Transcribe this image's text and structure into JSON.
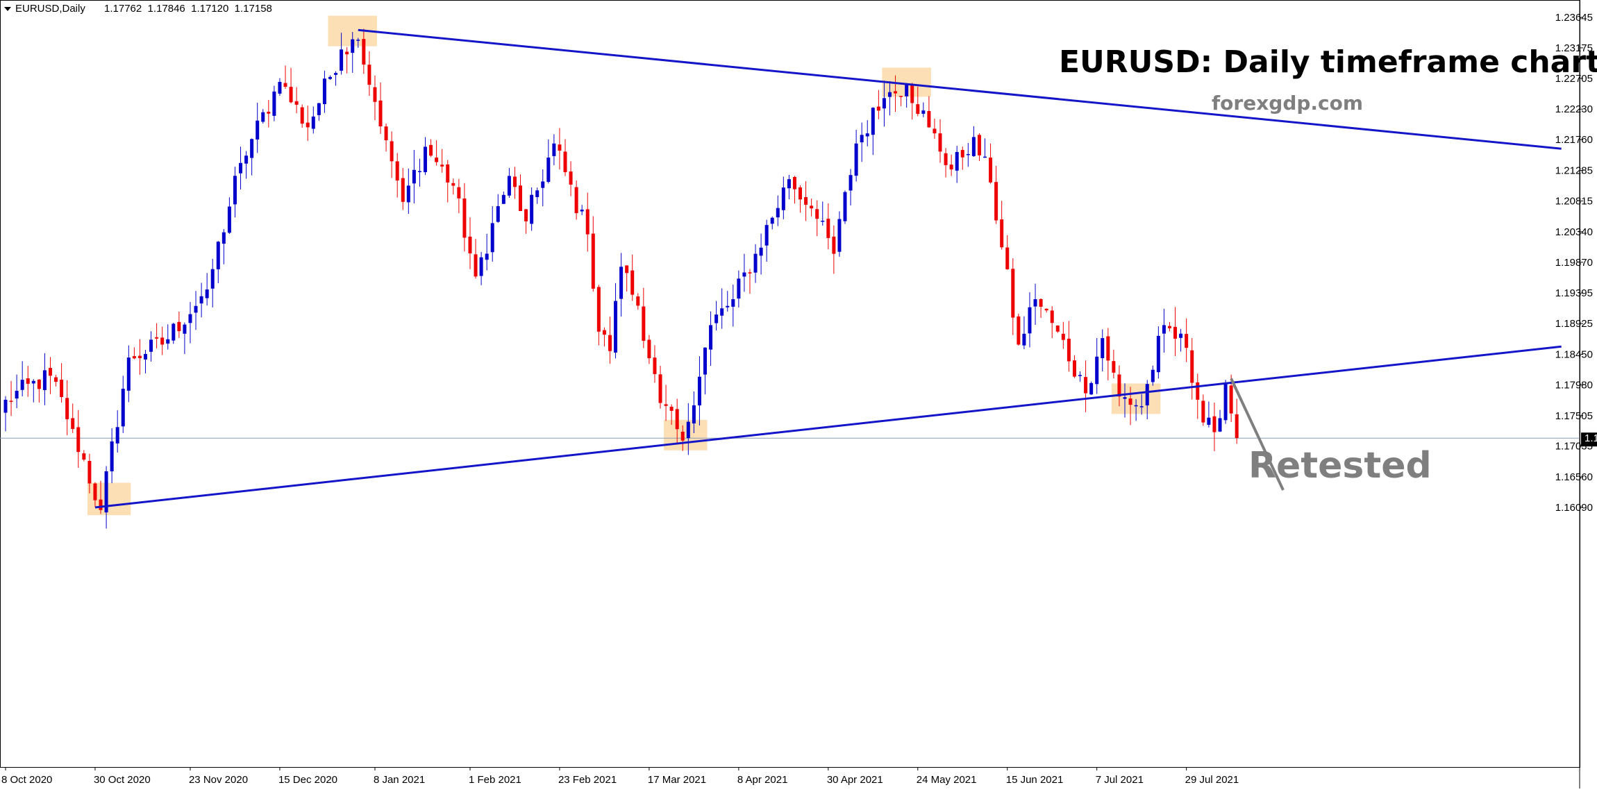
{
  "header": {
    "symbol_label": "EURUSD,Daily",
    "ohlc_text": "1.17762  1.17846  1.17120  1.17158",
    "menu_icon": "triangle-down-icon"
  },
  "annotations": {
    "title": "EURUSD: Daily timeframe chart",
    "site": "forexgdp.com",
    "callout": "Retested"
  },
  "current_price": "1.17158",
  "colors": {
    "bull": "#0000cc",
    "bear": "#ee0000",
    "trendline": "#1414c8",
    "highlight": "#fbd9a8",
    "price_line": "#8a9bb0",
    "callout": "#7f7f7f"
  },
  "chart_data": {
    "type": "candlestick",
    "title": "EURUSD: Daily timeframe chart",
    "xlabel": "",
    "ylabel": "",
    "ylim": [
      1.1585,
      1.2388
    ],
    "y_ticks": [
      "1.23645",
      "1.23175",
      "1.22705",
      "1.22230",
      "1.21760",
      "1.21285",
      "1.20815",
      "1.20340",
      "1.19870",
      "1.19395",
      "1.18925",
      "1.18450",
      "1.17980",
      "1.17505",
      "1.17035",
      "1.16560",
      "1.16090"
    ],
    "x_ticks": [
      {
        "label": "8 Oct 2020",
        "index": 0
      },
      {
        "label": "30 Oct 2020",
        "index": 16
      },
      {
        "label": "23 Nov 2020",
        "index": 33
      },
      {
        "label": "15 Dec 2020",
        "index": 49
      },
      {
        "label": "8 Jan 2021",
        "index": 66
      },
      {
        "label": "1 Feb 2021",
        "index": 83
      },
      {
        "label": "23 Feb 2021",
        "index": 99
      },
      {
        "label": "17 Mar 2021",
        "index": 115
      },
      {
        "label": "8 Apr 2021",
        "index": 131
      },
      {
        "label": "30 Apr 2021",
        "index": 147
      },
      {
        "label": "24 May 2021",
        "index": 163
      },
      {
        "label": "15 Jun 2021",
        "index": 179
      },
      {
        "label": "7 Jul 2021",
        "index": 195
      },
      {
        "label": "29 Jul 2021",
        "index": 211
      }
    ],
    "num_bars": 278,
    "key_points": [
      {
        "i": 0,
        "p": 1.1775
      },
      {
        "i": 8,
        "p": 1.1812
      },
      {
        "i": 12,
        "p": 1.173
      },
      {
        "i": 17,
        "p": 1.1605
      },
      {
        "i": 22,
        "p": 1.184
      },
      {
        "i": 28,
        "p": 1.186
      },
      {
        "i": 36,
        "p": 1.1945
      },
      {
        "i": 42,
        "p": 1.214
      },
      {
        "i": 49,
        "p": 1.2265
      },
      {
        "i": 54,
        "p": 1.2195
      },
      {
        "i": 60,
        "p": 1.2315
      },
      {
        "i": 63,
        "p": 1.233
      },
      {
        "i": 68,
        "p": 1.2175
      },
      {
        "i": 71,
        "p": 1.208
      },
      {
        "i": 75,
        "p": 1.2165
      },
      {
        "i": 80,
        "p": 1.2105
      },
      {
        "i": 84,
        "p": 1.1965
      },
      {
        "i": 90,
        "p": 1.212
      },
      {
        "i": 93,
        "p": 1.205
      },
      {
        "i": 98,
        "p": 1.217
      },
      {
        "i": 104,
        "p": 1.203
      },
      {
        "i": 106,
        "p": 1.188
      },
      {
        "i": 108,
        "p": 1.185
      },
      {
        "i": 110,
        "p": 1.198
      },
      {
        "i": 113,
        "p": 1.192
      },
      {
        "i": 117,
        "p": 1.177
      },
      {
        "i": 121,
        "p": 1.1712
      },
      {
        "i": 126,
        "p": 1.189
      },
      {
        "i": 130,
        "p": 1.193
      },
      {
        "i": 134,
        "p": 1.2
      },
      {
        "i": 140,
        "p": 1.2115
      },
      {
        "i": 144,
        "p": 1.207
      },
      {
        "i": 148,
        "p": 1.2
      },
      {
        "i": 152,
        "p": 1.217
      },
      {
        "i": 157,
        "p": 1.224
      },
      {
        "i": 161,
        "p": 1.2262
      },
      {
        "i": 165,
        "p": 1.2195
      },
      {
        "i": 169,
        "p": 1.213
      },
      {
        "i": 173,
        "p": 1.218
      },
      {
        "i": 176,
        "p": 1.211
      },
      {
        "i": 178,
        "p": 1.201
      },
      {
        "i": 181,
        "p": 1.186
      },
      {
        "i": 184,
        "p": 1.193
      },
      {
        "i": 188,
        "p": 1.188
      },
      {
        "i": 193,
        "p": 1.1785
      },
      {
        "i": 196,
        "p": 1.187
      },
      {
        "i": 199,
        "p": 1.178
      },
      {
        "i": 203,
        "p": 1.1765
      },
      {
        "i": 207,
        "p": 1.189
      },
      {
        "i": 211,
        "p": 1.1855
      },
      {
        "i": 214,
        "p": 1.174
      },
      {
        "i": 216,
        "p": 1.1725
      },
      {
        "i": 218,
        "p": 1.18
      },
      {
        "i": 220,
        "p": 1.1716
      }
    ],
    "last_bar_index": 220,
    "trendlines": [
      {
        "name": "descending resistance",
        "from": {
          "i": 63,
          "p": 1.2345
        },
        "to": {
          "i": 278,
          "p": 1.2162
        }
      },
      {
        "name": "ascending support",
        "from": {
          "i": 16,
          "p": 1.1609
        },
        "to": {
          "i": 278,
          "p": 1.1857
        }
      }
    ],
    "highlight_zones": [
      {
        "i0": 15,
        "i1": 22,
        "p0": 1.1597,
        "p1": 1.1647
      },
      {
        "i0": 58,
        "i1": 66,
        "p0": 1.232,
        "p1": 1.2367
      },
      {
        "i0": 118,
        "i1": 125,
        "p0": 1.1697,
        "p1": 1.1744
      },
      {
        "i0": 157,
        "i1": 165,
        "p0": 1.2242,
        "p1": 1.2287
      },
      {
        "i0": 198,
        "i1": 206,
        "p0": 1.1753,
        "p1": 1.18
      }
    ],
    "current_price": 1.17158,
    "callout_target": {
      "i": 219,
      "p": 1.1799
    },
    "grid": false,
    "legend": "none"
  }
}
